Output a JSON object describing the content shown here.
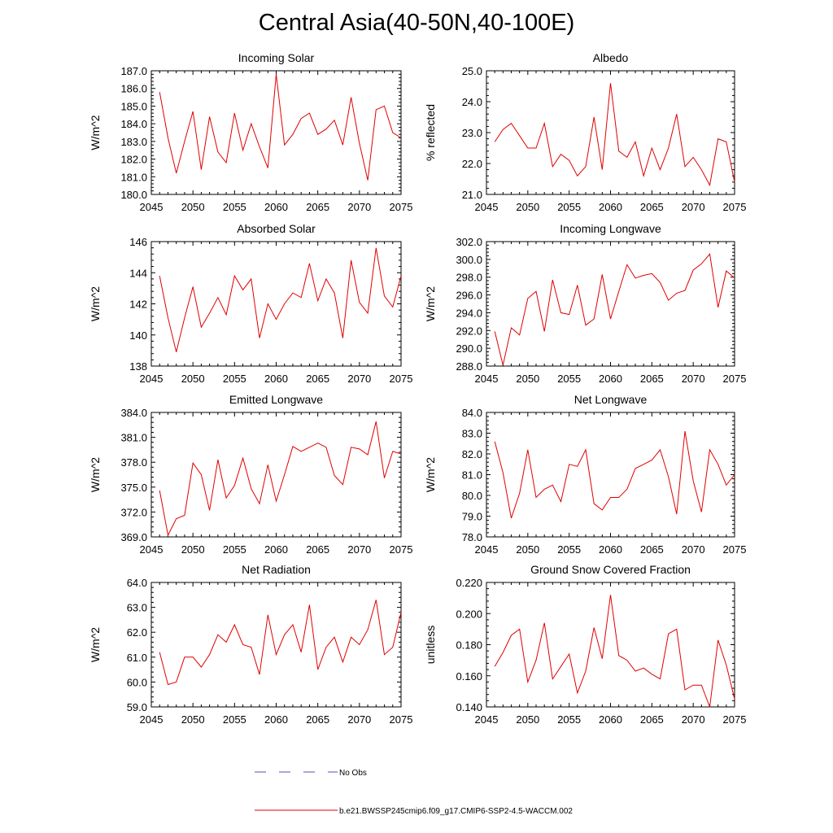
{
  "figure": {
    "title": "Central Asia(40-50N,40-100E)"
  },
  "legend": {
    "obs_label": "No Obs",
    "model_label": "b.e21.BWSSP245cmip6.f09_g17.CMIP6-SSP2-4.5-WACCM.002",
    "model_color": "#e00000",
    "obs_color": "#5050c0"
  },
  "chart_data": [
    {
      "type": "line",
      "title": "Incoming Solar",
      "xlabel": "",
      "ylabel": "W/m^2",
      "xlim": [
        2045,
        2075
      ],
      "ylim": [
        180,
        187
      ],
      "xticks": [
        2045,
        2050,
        2055,
        2060,
        2065,
        2070,
        2075
      ],
      "yticks": [
        180,
        181,
        182,
        183,
        184,
        185,
        186,
        187
      ],
      "ydecimals": 1,
      "x": [
        2046,
        2047,
        2048,
        2049,
        2050,
        2051,
        2052,
        2053,
        2054,
        2055,
        2056,
        2057,
        2058,
        2059,
        2060,
        2061,
        2062,
        2063,
        2064,
        2065,
        2066,
        2067,
        2068,
        2069,
        2070,
        2071,
        2072,
        2073,
        2074,
        2075
      ],
      "series": [
        {
          "name": "b.e21.BWSSP245cmip6.f09_g17.CMIP6-SSP2-4.5-WACCM.002",
          "values": [
            185.8,
            183.2,
            181.2,
            183.0,
            184.7,
            181.4,
            184.4,
            182.4,
            181.8,
            184.6,
            182.5,
            184.0,
            182.7,
            181.5,
            186.8,
            182.8,
            183.4,
            184.3,
            184.6,
            183.4,
            183.7,
            184.2,
            182.8,
            185.5,
            182.9,
            180.8,
            184.8,
            185.0,
            183.5,
            183.2
          ]
        }
      ]
    },
    {
      "type": "line",
      "title": "Albedo",
      "xlabel": "",
      "ylabel": "% reflected",
      "xlim": [
        2045,
        2075
      ],
      "ylim": [
        21,
        25
      ],
      "xticks": [
        2045,
        2050,
        2055,
        2060,
        2065,
        2070,
        2075
      ],
      "yticks": [
        21,
        22,
        23,
        24,
        25
      ],
      "ydecimals": 1,
      "x": [
        2046,
        2047,
        2048,
        2049,
        2050,
        2051,
        2052,
        2053,
        2054,
        2055,
        2056,
        2057,
        2058,
        2059,
        2060,
        2061,
        2062,
        2063,
        2064,
        2065,
        2066,
        2067,
        2068,
        2069,
        2070,
        2071,
        2072,
        2073,
        2074,
        2075
      ],
      "series": [
        {
          "name": "b.e21.BWSSP245cmip6.f09_g17.CMIP6-SSP2-4.5-WACCM.002",
          "values": [
            22.7,
            23.1,
            23.3,
            22.9,
            22.5,
            22.5,
            23.3,
            21.9,
            22.3,
            22.1,
            21.6,
            21.9,
            23.5,
            21.8,
            24.6,
            22.4,
            22.2,
            22.7,
            21.6,
            22.5,
            21.8,
            22.5,
            23.6,
            21.9,
            22.2,
            21.8,
            21.3,
            22.8,
            22.7,
            21.4
          ]
        }
      ]
    },
    {
      "type": "line",
      "title": "Absorbed Solar",
      "xlabel": "",
      "ylabel": "W/m^2",
      "xlim": [
        2045,
        2075
      ],
      "ylim": [
        138,
        146
      ],
      "xticks": [
        2045,
        2050,
        2055,
        2060,
        2065,
        2070,
        2075
      ],
      "yticks": [
        138,
        140,
        142,
        144,
        146
      ],
      "ydecimals": 0,
      "x": [
        2046,
        2047,
        2048,
        2049,
        2050,
        2051,
        2052,
        2053,
        2054,
        2055,
        2056,
        2057,
        2058,
        2059,
        2060,
        2061,
        2062,
        2063,
        2064,
        2065,
        2066,
        2067,
        2068,
        2069,
        2070,
        2071,
        2072,
        2073,
        2074,
        2075
      ],
      "series": [
        {
          "name": "b.e21.BWSSP245cmip6.f09_g17.CMIP6-SSP2-4.5-WACCM.002",
          "values": [
            143.8,
            141.1,
            138.9,
            141.1,
            143.1,
            140.5,
            141.4,
            142.4,
            141.3,
            143.8,
            142.9,
            143.6,
            139.8,
            142.0,
            141.0,
            142.0,
            142.7,
            142.4,
            144.6,
            142.2,
            143.6,
            142.7,
            139.8,
            144.8,
            142.1,
            141.4,
            145.6,
            142.5,
            141.8,
            143.8
          ]
        }
      ]
    },
    {
      "type": "line",
      "title": "Incoming Longwave",
      "xlabel": "",
      "ylabel": "W/m^2",
      "xlim": [
        2045,
        2075
      ],
      "ylim": [
        288,
        302
      ],
      "xticks": [
        2045,
        2050,
        2055,
        2060,
        2065,
        2070,
        2075
      ],
      "yticks": [
        288,
        290,
        292,
        294,
        296,
        298,
        300,
        302
      ],
      "ydecimals": 1,
      "x": [
        2046,
        2047,
        2048,
        2049,
        2050,
        2051,
        2052,
        2053,
        2054,
        2055,
        2056,
        2057,
        2058,
        2059,
        2060,
        2061,
        2062,
        2063,
        2064,
        2065,
        2066,
        2067,
        2068,
        2069,
        2070,
        2071,
        2072,
        2073,
        2074,
        2075
      ],
      "series": [
        {
          "name": "b.e21.BWSSP245cmip6.f09_g17.CMIP6-SSP2-4.5-WACCM.002",
          "values": [
            291.9,
            288.1,
            292.3,
            291.5,
            295.6,
            296.4,
            291.9,
            297.7,
            294.0,
            293.8,
            297.1,
            292.6,
            293.3,
            298.3,
            293.3,
            296.4,
            299.4,
            297.9,
            298.2,
            298.4,
            297.4,
            295.4,
            296.2,
            296.5,
            298.8,
            299.5,
            300.6,
            294.6,
            298.7,
            297.9
          ]
        }
      ]
    },
    {
      "type": "line",
      "title": "Emitted Longwave",
      "xlabel": "",
      "ylabel": "W/m^2",
      "xlim": [
        2045,
        2075
      ],
      "ylim": [
        369,
        384
      ],
      "xticks": [
        2045,
        2050,
        2055,
        2060,
        2065,
        2070,
        2075
      ],
      "yticks": [
        369,
        372,
        375,
        378,
        381,
        384
      ],
      "ydecimals": 1,
      "x": [
        2046,
        2047,
        2048,
        2049,
        2050,
        2051,
        2052,
        2053,
        2054,
        2055,
        2056,
        2057,
        2058,
        2059,
        2060,
        2061,
        2062,
        2063,
        2064,
        2065,
        2066,
        2067,
        2068,
        2069,
        2070,
        2071,
        2072,
        2073,
        2074,
        2075
      ],
      "series": [
        {
          "name": "b.e21.BWSSP245cmip6.f09_g17.CMIP6-SSP2-4.5-WACCM.002",
          "values": [
            374.6,
            369.2,
            371.2,
            371.6,
            377.9,
            376.5,
            372.2,
            378.3,
            373.7,
            375.2,
            378.5,
            374.8,
            373.0,
            377.7,
            373.3,
            376.5,
            379.9,
            379.3,
            379.8,
            380.3,
            379.8,
            376.4,
            375.3,
            379.8,
            379.6,
            378.9,
            382.9,
            376.1,
            379.3,
            379.0
          ]
        }
      ]
    },
    {
      "type": "line",
      "title": "Net Longwave",
      "xlabel": "",
      "ylabel": "W/m^2",
      "xlim": [
        2045,
        2075
      ],
      "ylim": [
        78,
        84
      ],
      "xticks": [
        2045,
        2050,
        2055,
        2060,
        2065,
        2070,
        2075
      ],
      "yticks": [
        78,
        79,
        80,
        81,
        82,
        83,
        84
      ],
      "ydecimals": 1,
      "x": [
        2046,
        2047,
        2048,
        2049,
        2050,
        2051,
        2052,
        2053,
        2054,
        2055,
        2056,
        2057,
        2058,
        2059,
        2060,
        2061,
        2062,
        2063,
        2064,
        2065,
        2066,
        2067,
        2068,
        2069,
        2070,
        2071,
        2072,
        2073,
        2074,
        2075
      ],
      "series": [
        {
          "name": "b.e21.BWSSP245cmip6.f09_g17.CMIP6-SSP2-4.5-WACCM.002",
          "values": [
            82.6,
            81.1,
            78.9,
            80.1,
            82.2,
            79.9,
            80.3,
            80.5,
            79.7,
            81.5,
            81.4,
            82.2,
            79.6,
            79.3,
            79.9,
            79.9,
            80.3,
            81.3,
            81.5,
            81.7,
            82.2,
            80.9,
            79.1,
            83.1,
            80.7,
            79.2,
            82.2,
            81.5,
            80.5,
            81.0
          ]
        }
      ]
    },
    {
      "type": "line",
      "title": "Net Radiation",
      "xlabel": "",
      "ylabel": "W/m^2",
      "xlim": [
        2045,
        2075
      ],
      "ylim": [
        59,
        64
      ],
      "xticks": [
        2045,
        2050,
        2055,
        2060,
        2065,
        2070,
        2075
      ],
      "yticks": [
        59,
        60,
        61,
        62,
        63,
        64
      ],
      "ydecimals": 1,
      "x": [
        2046,
        2047,
        2048,
        2049,
        2050,
        2051,
        2052,
        2053,
        2054,
        2055,
        2056,
        2057,
        2058,
        2059,
        2060,
        2061,
        2062,
        2063,
        2064,
        2065,
        2066,
        2067,
        2068,
        2069,
        2070,
        2071,
        2072,
        2073,
        2074,
        2075
      ],
      "series": [
        {
          "name": "b.e21.BWSSP245cmip6.f09_g17.CMIP6-SSP2-4.5-WACCM.002",
          "values": [
            61.2,
            59.9,
            60.0,
            61.0,
            61.0,
            60.6,
            61.1,
            61.9,
            61.6,
            62.3,
            61.5,
            61.4,
            60.3,
            62.7,
            61.1,
            61.9,
            62.3,
            61.2,
            63.1,
            60.5,
            61.4,
            61.8,
            60.8,
            61.8,
            61.5,
            62.1,
            63.3,
            61.1,
            61.4,
            62.8
          ]
        }
      ]
    },
    {
      "type": "line",
      "title": "Ground Snow Covered Fraction",
      "xlabel": "",
      "ylabel": "unitless",
      "xlim": [
        2045,
        2075
      ],
      "ylim": [
        0.14,
        0.22
      ],
      "xticks": [
        2045,
        2050,
        2055,
        2060,
        2065,
        2070,
        2075
      ],
      "yticks": [
        0.14,
        0.16,
        0.18,
        0.2,
        0.22
      ],
      "ydecimals": 3,
      "x": [
        2046,
        2047,
        2048,
        2049,
        2050,
        2051,
        2052,
        2053,
        2054,
        2055,
        2056,
        2057,
        2058,
        2059,
        2060,
        2061,
        2062,
        2063,
        2064,
        2065,
        2066,
        2067,
        2068,
        2069,
        2070,
        2071,
        2072,
        2073,
        2074,
        2075
      ],
      "series": [
        {
          "name": "b.e21.BWSSP245cmip6.f09_g17.CMIP6-SSP2-4.5-WACCM.002",
          "values": [
            0.166,
            0.175,
            0.186,
            0.19,
            0.156,
            0.17,
            0.194,
            0.158,
            0.166,
            0.174,
            0.149,
            0.163,
            0.191,
            0.171,
            0.212,
            0.173,
            0.17,
            0.163,
            0.165,
            0.161,
            0.158,
            0.187,
            0.19,
            0.151,
            0.154,
            0.154,
            0.14,
            0.183,
            0.167,
            0.145
          ]
        }
      ]
    }
  ]
}
